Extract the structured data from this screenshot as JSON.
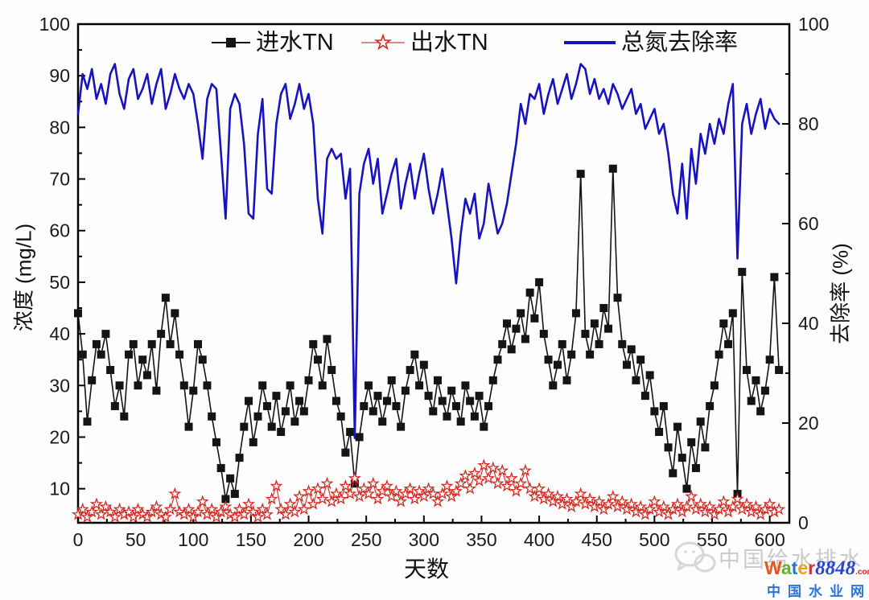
{
  "chart_data": {
    "type": "line",
    "title": "",
    "xlabel": "天数",
    "ylabel_left": "浓度 (mg/L)",
    "ylabel_right": "去除率 (%)",
    "x_axis": {
      "min": 0,
      "max": 617,
      "major_ticks": [
        0,
        50,
        100,
        150,
        200,
        250,
        300,
        350,
        400,
        450,
        500,
        550,
        600
      ],
      "minor_ticks": [
        25,
        75,
        125,
        175,
        225,
        275,
        325,
        375,
        425,
        475,
        525,
        575
      ]
    },
    "y_left": {
      "min": 3.4,
      "max": 100,
      "major_ticks": [
        10,
        20,
        30,
        40,
        50,
        60,
        70,
        80,
        90,
        100
      ],
      "minor_ticks": [
        5,
        15,
        25,
        35,
        45,
        55,
        65,
        75,
        85,
        95
      ]
    },
    "y_right": {
      "min": 0,
      "max": 100,
      "major_ticks": [
        0,
        20,
        40,
        60,
        80,
        100
      ],
      "minor_ticks": [
        10,
        30,
        50,
        70,
        90
      ]
    },
    "x_start": 0,
    "x_step": 4,
    "series": [
      {
        "name": "进水TN",
        "axis": "left",
        "color": "#141414",
        "marker": "square",
        "values": [
          44,
          36,
          23,
          31,
          38,
          36,
          40,
          33,
          26,
          30,
          24,
          36,
          38,
          30,
          35,
          32,
          38,
          29,
          40,
          47,
          38,
          44,
          36,
          30,
          22,
          29,
          38,
          35,
          30,
          24,
          19,
          14,
          8,
          12,
          9,
          16,
          22,
          27,
          19,
          24,
          30,
          26,
          22,
          28,
          21,
          25,
          30,
          23,
          27,
          25,
          31,
          38,
          35,
          30,
          39,
          33,
          27,
          24,
          17,
          21,
          11,
          20,
          26,
          30,
          25,
          28,
          23,
          27,
          31,
          26,
          22,
          29,
          33,
          36,
          30,
          34,
          28,
          25,
          31,
          27,
          24,
          29,
          26,
          23,
          30,
          27,
          24,
          28,
          22,
          26,
          31,
          35,
          38,
          42,
          37,
          41,
          44,
          39,
          48,
          43,
          50,
          40,
          35,
          30,
          34,
          38,
          31,
          36,
          44,
          71,
          40,
          36,
          42,
          38,
          45,
          41,
          72,
          47,
          38,
          34,
          37,
          31,
          35,
          28,
          32,
          25,
          21,
          26,
          18,
          13,
          22,
          16,
          10,
          19,
          14,
          23,
          18,
          26,
          30,
          36,
          42,
          38,
          44,
          9,
          52,
          33,
          27,
          31,
          25,
          29,
          35,
          51,
          33
        ]
      },
      {
        "name": "出水TN",
        "axis": "left",
        "color": "#d62820",
        "marker": "star",
        "values": [
          5,
          6,
          4.5,
          5.5,
          7,
          5,
          6.5,
          5.5,
          4.5,
          6,
          5,
          5.5,
          4.5,
          6,
          5,
          4.5,
          5.5,
          6.5,
          5,
          4.5,
          6,
          9,
          5.5,
          5,
          6,
          4.5,
          5.5,
          7.5,
          5,
          6,
          4.5,
          5.5,
          6.5,
          5,
          4.5,
          6,
          5,
          7,
          5.5,
          4.5,
          6,
          5,
          8,
          10.5,
          6,
          5,
          7,
          5.5,
          8.5,
          6,
          9.5,
          7,
          10,
          8,
          11,
          7.5,
          9,
          8,
          10.5,
          9,
          12,
          8.5,
          10,
          9,
          11,
          8,
          9.5,
          10.5,
          8.5,
          9.5,
          7.5,
          9,
          10,
          8,
          9.5,
          8.5,
          10,
          9,
          7.5,
          9,
          10.5,
          8.5,
          9.5,
          11,
          12.5,
          10,
          13,
          11.5,
          14.5,
          12,
          14,
          11,
          13.5,
          10.5,
          12,
          9.5,
          11,
          13.5,
          10,
          8.5,
          10,
          8,
          9,
          7.5,
          8.5,
          7,
          8,
          6.5,
          7.5,
          9,
          7,
          8,
          6.5,
          7.5,
          6,
          7,
          8.5,
          6.5,
          7.5,
          6,
          7,
          5.5,
          6.5,
          5,
          6,
          7.5,
          5.5,
          6.5,
          5,
          6,
          7,
          5.5,
          6.5,
          8.5,
          6,
          7,
          5.5,
          6.5,
          5,
          6,
          7.5,
          5.5,
          6.5,
          8,
          6,
          7,
          5.5,
          6.5,
          5,
          6,
          7,
          5.5,
          6
        ]
      },
      {
        "name": "总氮去除率",
        "axis": "right",
        "color": "#1813c0",
        "marker": "none",
        "values": [
          82,
          90,
          87,
          91,
          85,
          88,
          84,
          90,
          92,
          86,
          83,
          89,
          91,
          85,
          87,
          90,
          84,
          88,
          91,
          83,
          86,
          90,
          87,
          85,
          88,
          86,
          80,
          73,
          85,
          88,
          87,
          74,
          61,
          83,
          86,
          84,
          76,
          62,
          61,
          78,
          85,
          67,
          66,
          80,
          86,
          88,
          81,
          84,
          88,
          83,
          86,
          80,
          65,
          58,
          73,
          75,
          73,
          74,
          65,
          71,
          17,
          66,
          72,
          75,
          68,
          73,
          62,
          66,
          70,
          73,
          63,
          68,
          72,
          65,
          70,
          74,
          67,
          62,
          66,
          71,
          64,
          57,
          48,
          58,
          65,
          62,
          66,
          57,
          60,
          68,
          63,
          58,
          60,
          64,
          70,
          76,
          84,
          80,
          86,
          85,
          88,
          82,
          86,
          89,
          84,
          87,
          90,
          85,
          88,
          92,
          91,
          86,
          89,
          85,
          87,
          84,
          88,
          86,
          83,
          85,
          87,
          82,
          84,
          79,
          81,
          83,
          78,
          80,
          74,
          66,
          62,
          72,
          61,
          75,
          68,
          78,
          74,
          80,
          76,
          81,
          78,
          84,
          88,
          53,
          80,
          84,
          78,
          82,
          85,
          79,
          83,
          81,
          80
        ]
      }
    ]
  },
  "legend": {
    "influent_label": "进水TN",
    "effluent_label": "出水TN",
    "removal_label": "总氮去除率"
  },
  "watermark": {
    "gray_text": "中国给水排水",
    "water_letters": [
      {
        "ch": "W",
        "color": "#e8541a"
      },
      {
        "ch": "a",
        "color": "#66b32e"
      },
      {
        "ch": "t",
        "color": "#2277cc"
      },
      {
        "ch": "e",
        "color": "#f0a01e"
      },
      {
        "ch": "r",
        "color": "#cc3333"
      }
    ],
    "number": "8848",
    "dotcom": ".com",
    "cn_net": "中国水业网",
    "icon_color": "#cbcbcb"
  }
}
